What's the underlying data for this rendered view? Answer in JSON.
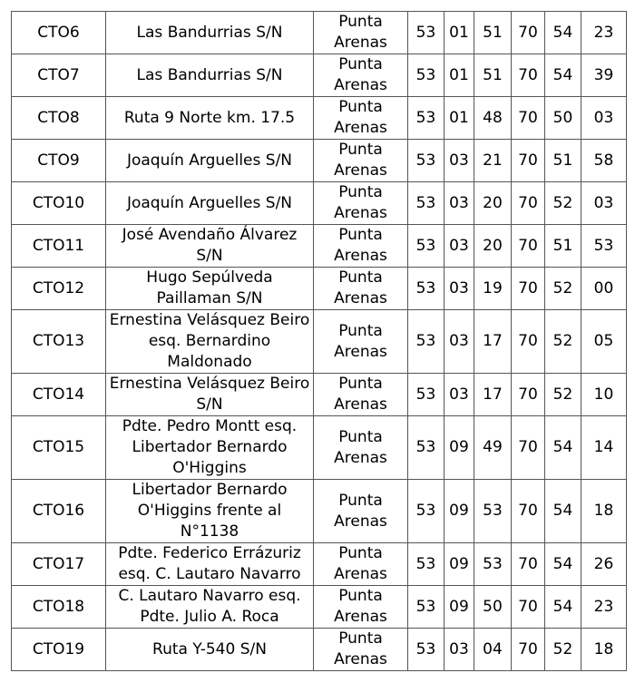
{
  "table": {
    "rows": [
      [
        "CTO6",
        "Las Bandurrias S/N",
        "Punta Arenas",
        "53",
        "01",
        "51",
        "70",
        "54",
        "23"
      ],
      [
        "CTO7",
        "Las Bandurrias S/N",
        "Punta Arenas",
        "53",
        "01",
        "51",
        "70",
        "54",
        "39"
      ],
      [
        "CTO8",
        "Ruta 9 Norte km. 17.5",
        "Punta Arenas",
        "53",
        "01",
        "48",
        "70",
        "50",
        "03"
      ],
      [
        "CTO9",
        "Joaquín Arguelles S/N",
        "Punta Arenas",
        "53",
        "03",
        "21",
        "70",
        "51",
        "58"
      ],
      [
        "CTO10",
        "Joaquín Arguelles S/N",
        "Punta Arenas",
        "53",
        "03",
        "20",
        "70",
        "52",
        "03"
      ],
      [
        "CTO11",
        "José Avendaño Álvarez S/N",
        "Punta Arenas",
        "53",
        "03",
        "20",
        "70",
        "51",
        "53"
      ],
      [
        "CTO12",
        "Hugo Sepúlveda Paillaman S/N",
        "Punta Arenas",
        "53",
        "03",
        "19",
        "70",
        "52",
        "00"
      ],
      [
        "CTO13",
        "Ernestina Velásquez Beiro esq. Bernardino Maldonado",
        "Punta Arenas",
        "53",
        "03",
        "17",
        "70",
        "52",
        "05"
      ],
      [
        "CTO14",
        "Ernestina Velásquez Beiro S/N",
        "Punta Arenas",
        "53",
        "03",
        "17",
        "70",
        "52",
        "10"
      ],
      [
        "CTO15",
        "Pdte. Pedro Montt esq. Libertador Bernardo O'Higgins",
        "Punta Arenas",
        "53",
        "09",
        "49",
        "70",
        "54",
        "14"
      ],
      [
        "CTO16",
        "Libertador Bernardo O'Higgins frente al N°1138",
        "Punta Arenas",
        "53",
        "09",
        "53",
        "70",
        "54",
        "18"
      ],
      [
        "CTO17",
        "Pdte. Federico Errázuriz esq. C. Lautaro Navarro",
        "Punta Arenas",
        "53",
        "09",
        "53",
        "70",
        "54",
        "26"
      ],
      [
        "CTO18",
        "C. Lautaro Navarro esq. Pdte. Julio A. Roca",
        "Punta Arenas",
        "53",
        "09",
        "50",
        "70",
        "54",
        "23"
      ],
      [
        "CTO19",
        "Ruta Y-540 S/N",
        "Punta Arenas",
        "53",
        "03",
        "04",
        "70",
        "52",
        "18"
      ]
    ]
  }
}
